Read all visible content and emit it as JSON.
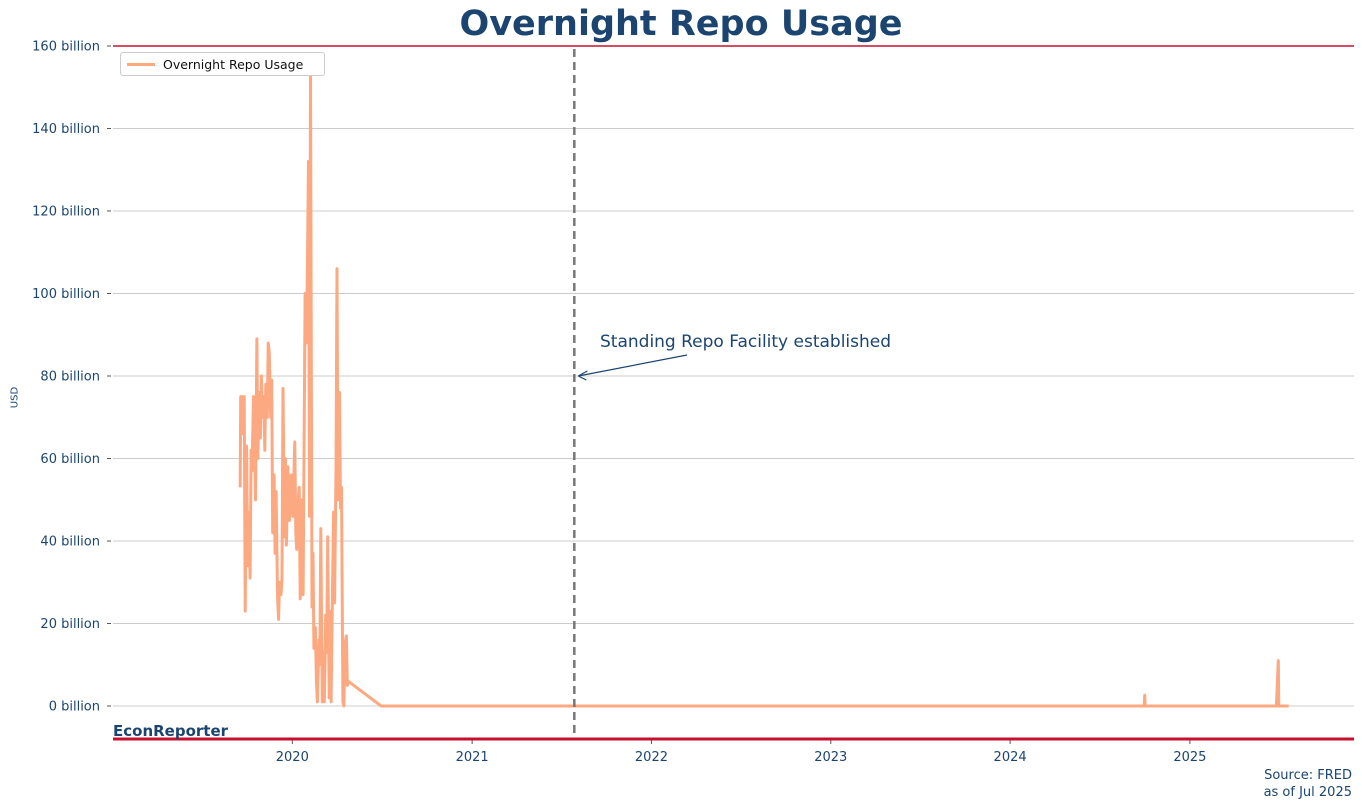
{
  "header": {
    "title": "Overnight Repo Usage"
  },
  "brand": "EconReporter",
  "source": {
    "line1": "Source: FRED",
    "line2": "as of Jul 2025"
  },
  "annotation": {
    "text": "Standing Repo Facility established",
    "date": "2021-07-28",
    "y": 80
  },
  "colors": {
    "series": "#fca982",
    "title": "#1b4570",
    "top_rule": "#c8102e",
    "bottom_rule": "#c8102e",
    "grid": "#cccccc",
    "vline": "#777777"
  },
  "chart_data": {
    "type": "line",
    "title": "Overnight Repo Usage",
    "ylabel": "USD",
    "xlabel": "",
    "legend": "top-left",
    "grid": "horizontal",
    "ylim": [
      0,
      160
    ],
    "xlim": [
      "2019-01-01",
      "2025-12-01"
    ],
    "xticks": [
      "2020",
      "2021",
      "2022",
      "2023",
      "2024",
      "2025"
    ],
    "yticks": [
      "0 billion",
      "20 billion",
      "40 billion",
      "60 billion",
      "80 billion",
      "100 billion",
      "120 billion",
      "140 billion",
      "160 billion"
    ],
    "vline": {
      "x": "2021-07-28",
      "style": "dashed"
    },
    "series": [
      {
        "name": "Overnight Repo Usage",
        "unit": "billion USD",
        "points": [
          [
            "2019-09-17",
            53
          ],
          [
            "2019-09-18",
            75
          ],
          [
            "2019-09-20",
            75
          ],
          [
            "2019-09-23",
            66
          ],
          [
            "2019-09-25",
            75
          ],
          [
            "2019-09-27",
            23
          ],
          [
            "2019-09-30",
            63
          ],
          [
            "2019-10-02",
            34
          ],
          [
            "2019-10-04",
            47
          ],
          [
            "2019-10-07",
            31
          ],
          [
            "2019-10-09",
            62
          ],
          [
            "2019-10-11",
            57
          ],
          [
            "2019-10-14",
            75
          ],
          [
            "2019-10-16",
            67
          ],
          [
            "2019-10-18",
            50
          ],
          [
            "2019-10-21",
            89
          ],
          [
            "2019-10-23",
            60
          ],
          [
            "2019-10-25",
            76
          ],
          [
            "2019-10-28",
            65
          ],
          [
            "2019-10-30",
            80
          ],
          [
            "2019-11-01",
            70
          ],
          [
            "2019-11-04",
            75
          ],
          [
            "2019-11-06",
            62
          ],
          [
            "2019-11-08",
            78
          ],
          [
            "2019-11-11",
            70
          ],
          [
            "2019-11-13",
            88
          ],
          [
            "2019-11-15",
            86
          ],
          [
            "2019-11-18",
            70
          ],
          [
            "2019-11-20",
            79
          ],
          [
            "2019-11-22",
            42
          ],
          [
            "2019-11-25",
            56
          ],
          [
            "2019-11-27",
            37
          ],
          [
            "2019-11-29",
            52
          ],
          [
            "2019-12-02",
            26
          ],
          [
            "2019-12-04",
            21
          ],
          [
            "2019-12-06",
            30
          ],
          [
            "2019-12-09",
            27
          ],
          [
            "2019-12-11",
            31
          ],
          [
            "2019-12-13",
            77
          ],
          [
            "2019-12-16",
            41
          ],
          [
            "2019-12-18",
            60
          ],
          [
            "2019-12-20",
            39
          ],
          [
            "2019-12-23",
            58
          ],
          [
            "2019-12-26",
            45
          ],
          [
            "2019-12-30",
            56
          ],
          [
            "2020-01-02",
            46
          ],
          [
            "2020-01-06",
            64
          ],
          [
            "2020-01-08",
            42
          ],
          [
            "2020-01-10",
            38
          ],
          [
            "2020-01-13",
            50
          ],
          [
            "2020-01-15",
            53
          ],
          [
            "2020-01-17",
            26
          ],
          [
            "2020-01-21",
            50
          ],
          [
            "2020-01-23",
            27
          ],
          [
            "2020-01-27",
            100
          ],
          [
            "2020-01-29",
            88
          ],
          [
            "2020-01-31",
            100
          ],
          [
            "2020-02-03",
            132
          ],
          [
            "2020-02-05",
            46
          ],
          [
            "2020-02-07",
            155
          ],
          [
            "2020-02-10",
            24
          ],
          [
            "2020-02-12",
            37
          ],
          [
            "2020-02-14",
            14
          ],
          [
            "2020-02-17",
            19
          ],
          [
            "2020-02-19",
            6
          ],
          [
            "2020-02-21",
            1
          ],
          [
            "2020-02-24",
            16
          ],
          [
            "2020-02-26",
            10
          ],
          [
            "2020-02-28",
            43
          ],
          [
            "2020-03-02",
            1
          ],
          [
            "2020-03-04",
            13
          ],
          [
            "2020-03-06",
            1
          ],
          [
            "2020-03-09",
            22
          ],
          [
            "2020-03-11",
            13
          ],
          [
            "2020-03-13",
            41
          ],
          [
            "2020-03-16",
            2
          ],
          [
            "2020-03-18",
            23
          ],
          [
            "2020-03-20",
            1
          ],
          [
            "2020-03-23",
            30
          ],
          [
            "2020-03-25",
            47
          ],
          [
            "2020-03-27",
            25
          ],
          [
            "2020-03-30",
            57
          ],
          [
            "2020-04-01",
            106
          ],
          [
            "2020-04-03",
            50
          ],
          [
            "2020-04-06",
            76
          ],
          [
            "2020-04-08",
            48
          ],
          [
            "2020-04-10",
            53
          ],
          [
            "2020-04-13",
            1
          ],
          [
            "2020-04-15",
            0
          ],
          [
            "2020-04-17",
            15
          ],
          [
            "2020-04-20",
            17
          ],
          [
            "2020-04-22",
            5
          ],
          [
            "2020-04-24",
            6
          ],
          [
            "2020-06-30",
            0
          ],
          [
            "2020-07-01",
            0
          ],
          [
            "2021-07-28",
            0
          ],
          [
            "2022-06-01",
            0
          ],
          [
            "2023-06-01",
            0
          ],
          [
            "2024-06-01",
            0
          ],
          [
            "2024-09-30",
            0
          ],
          [
            "2024-10-01",
            2.6
          ],
          [
            "2024-10-02",
            0
          ],
          [
            "2025-06-26",
            0
          ],
          [
            "2025-06-30",
            11
          ],
          [
            "2025-07-01",
            0
          ],
          [
            "2025-07-21",
            0
          ]
        ]
      }
    ]
  }
}
